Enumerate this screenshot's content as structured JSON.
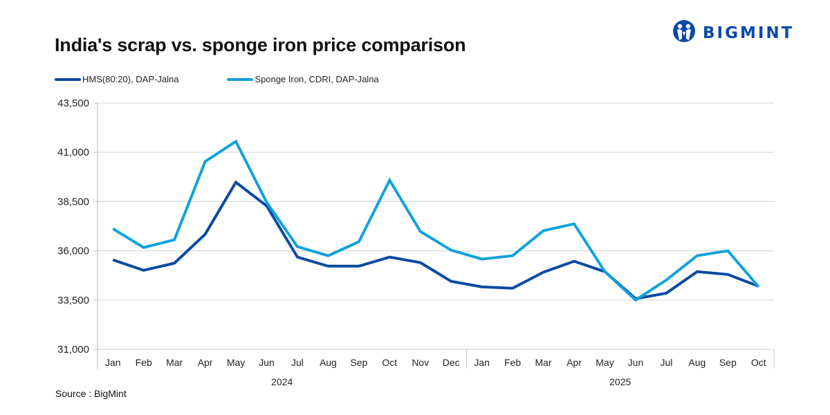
{
  "header": {
    "title": "India's scrap vs. sponge iron price comparison",
    "logo_text": "BIGMINT",
    "logo_icon": "bigmint-people-icon"
  },
  "footer": {
    "source": "Source : BigMint"
  },
  "colors": {
    "hms": "#0a4aa3",
    "sponge": "#10a2dc",
    "grid": "#d9d9d9",
    "brand": "#0a4aa6"
  },
  "chart_data": {
    "type": "line",
    "title": "India's scrap vs. sponge iron price comparison",
    "xlabel": "",
    "ylabel": "",
    "ylim": [
      31000,
      43500
    ],
    "yticks": [
      31000,
      33500,
      36000,
      38500,
      41000,
      43500
    ],
    "ytick_labels": [
      "31,000",
      "33,500",
      "36,000",
      "38,500",
      "41,000",
      "43,500"
    ],
    "grid": true,
    "legend_position": "top-left",
    "categories": [
      "Jan",
      "Feb",
      "Mar",
      "Apr",
      "May",
      "Jun",
      "Jul",
      "Aug",
      "Sep",
      "Oct",
      "Nov",
      "Dec",
      "Jan",
      "Feb",
      "Mar",
      "Apr",
      "May",
      "Jun",
      "Jul",
      "Aug",
      "Sep",
      "Oct"
    ],
    "year_groups": [
      {
        "label": "2024",
        "count": 12
      },
      {
        "label": "2025",
        "count": 10
      }
    ],
    "series": [
      {
        "name": "HMS(80:20), DAP-Jalna",
        "color": "#0a4aa3",
        "values": [
          35540,
          35010,
          35370,
          36840,
          39480,
          38280,
          35680,
          35220,
          35220,
          35680,
          35400,
          34450,
          34170,
          34100,
          34910,
          35470,
          34940,
          33570,
          33850,
          34940,
          34800,
          34200
        ]
      },
      {
        "name": "Sponge Iron, CDRI, DAP-Jalna",
        "color": "#10a2dc",
        "values": [
          37120,
          36170,
          36560,
          40530,
          41550,
          38460,
          36210,
          35750,
          36460,
          39580,
          36980,
          36030,
          35580,
          35750,
          37020,
          37370,
          34940,
          33500,
          34520,
          35750,
          36000,
          34170
        ]
      }
    ]
  }
}
